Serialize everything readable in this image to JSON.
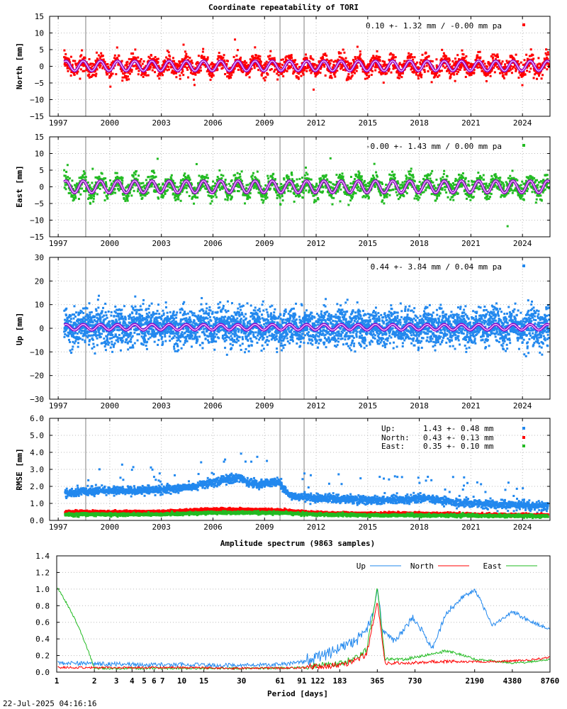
{
  "title": "Coordinate repeatability of TORI",
  "timestamp": "22-Jul-2025 04:16:16",
  "colors": {
    "north": "#ff0000",
    "east": "#22bb22",
    "up": "#2288ee",
    "model": "#9900cc",
    "discontinuity": "#aaaaaa",
    "grid": "#bbbbbb"
  },
  "chart_data": [
    {
      "type": "scatter",
      "ylabel": "North [mm]",
      "legend": "0.10 +- 1.32 mm / -0.00 mm pa",
      "legend_position": "top-right",
      "ylim": [
        -15,
        15
      ],
      "yticks": [
        -15,
        -10,
        -5,
        0,
        5,
        10,
        15
      ],
      "xlim": [
        1996.5,
        2025.6
      ],
      "xticks": [
        1997,
        2000,
        2003,
        2006,
        2009,
        2012,
        2015,
        2018,
        2021,
        2024
      ],
      "data_start": 1997.35,
      "data_end": 2025.55,
      "mean": 0.1,
      "wrms": 1.32,
      "rate": -0.0,
      "seasonal_amplitude": 1.5,
      "discontinuities": [
        1998.6,
        2009.9,
        2011.3
      ],
      "grid": true
    },
    {
      "type": "scatter",
      "ylabel": "East [mm]",
      "legend": "-0.00 +- 1.43 mm /  0.00 mm pa",
      "legend_position": "top-right",
      "ylim": [
        -15,
        15
      ],
      "yticks": [
        -15,
        -10,
        -5,
        0,
        5,
        10,
        15
      ],
      "xlim": [
        1996.5,
        2025.6
      ],
      "xticks": [
        1997,
        2000,
        2003,
        2006,
        2009,
        2012,
        2015,
        2018,
        2021,
        2024
      ],
      "data_start": 1997.35,
      "data_end": 2025.55,
      "mean": -0.0,
      "wrms": 1.43,
      "rate": 0.0,
      "seasonal_amplitude": 1.8,
      "discontinuities": [
        1998.6,
        2009.9,
        2011.3
      ],
      "grid": true
    },
    {
      "type": "scatter",
      "ylabel": "Up [mm]",
      "legend": "0.44 +- 3.84 mm /  0.04 mm pa",
      "legend_position": "top-right",
      "ylim": [
        -30,
        30
      ],
      "yticks": [
        -30,
        -20,
        -10,
        0,
        10,
        20,
        30
      ],
      "xlim": [
        1996.5,
        2025.6
      ],
      "xticks": [
        1997,
        2000,
        2003,
        2006,
        2009,
        2012,
        2015,
        2018,
        2021,
        2024
      ],
      "data_start": 1997.35,
      "data_end": 2025.55,
      "mean": 0.44,
      "wrms": 3.84,
      "rate": 0.04,
      "seasonal_amplitude": 1.2,
      "discontinuities": [
        1998.6,
        2009.9,
        2011.3
      ],
      "grid": true
    },
    {
      "type": "scatter",
      "ylabel": "RMSE [mm]",
      "ylim": [
        0.0,
        6.0
      ],
      "yticks": [
        "0.0",
        "1.0",
        "2.0",
        "3.0",
        "4.0",
        "5.0",
        "6.0"
      ],
      "xlim": [
        1996.5,
        2025.6
      ],
      "xticks": [
        1997,
        2000,
        2003,
        2006,
        2009,
        2012,
        2015,
        2018,
        2021,
        2024
      ],
      "legend_position": "top-right",
      "legend": [
        {
          "label": "Up:",
          "value": "1.43 +- 0.48 mm",
          "series": "up"
        },
        {
          "label": "North:",
          "value": "0.43 +- 0.13 mm",
          "series": "north"
        },
        {
          "label": "East:",
          "value": "0.35 +- 0.10 mm",
          "series": "east"
        }
      ],
      "series": [
        {
          "name": "Up",
          "x": [
            1997.4,
            1999,
            2001,
            2003,
            2005,
            2006.5,
            2007.5,
            2008.5,
            2009.8,
            2010.5,
            2012,
            2014,
            2015.5,
            2017,
            2018.5,
            2020,
            2022,
            2024,
            2025.5
          ],
          "values": [
            1.6,
            1.75,
            1.75,
            1.8,
            2.0,
            2.35,
            2.5,
            2.1,
            2.3,
            1.4,
            1.3,
            1.25,
            1.2,
            1.2,
            1.3,
            1.05,
            0.95,
            0.9,
            0.85
          ]
        },
        {
          "name": "North",
          "x": [
            1997.4,
            2000,
            2003,
            2006,
            2009.8,
            2012,
            2015,
            2018,
            2021,
            2025.5
          ],
          "values": [
            0.5,
            0.5,
            0.5,
            0.65,
            0.6,
            0.45,
            0.4,
            0.4,
            0.35,
            0.3
          ]
        },
        {
          "name": "East",
          "x": [
            1997.4,
            2000,
            2003,
            2006,
            2009.8,
            2012,
            2015,
            2018,
            2021,
            2025.5
          ],
          "values": [
            0.35,
            0.35,
            0.35,
            0.45,
            0.45,
            0.35,
            0.3,
            0.3,
            0.28,
            0.25
          ]
        }
      ],
      "discontinuities": [
        1998.6,
        2009.9,
        2011.3
      ],
      "grid": true
    },
    {
      "type": "line",
      "title": "Amplitude spectrum (9863 samples)",
      "xlabel": "Period [days]",
      "ylim": [
        0.0,
        1.4
      ],
      "yticks": [
        "0.0",
        "0.2",
        "0.4",
        "0.6",
        "0.8",
        "1.0",
        "1.2",
        "1.4"
      ],
      "xscale": "log",
      "xlim": [
        1,
        8760
      ],
      "xticks": [
        1,
        2,
        3,
        4,
        5,
        6,
        7,
        10,
        15,
        30,
        61,
        91,
        122,
        183,
        365,
        730,
        2190,
        4380,
        8760
      ],
      "legend_position": "top-right",
      "series": [
        {
          "name": "Up",
          "x": [
            1,
            2,
            5,
            10,
            30,
            60,
            100,
            150,
            183,
            250,
            330,
            365,
            400,
            500,
            700,
            1000,
            1300,
            1700,
            2190,
            3000,
            4380,
            6000,
            8760
          ],
          "values": [
            0.1,
            0.09,
            0.08,
            0.08,
            0.07,
            0.08,
            0.12,
            0.2,
            0.25,
            0.35,
            0.6,
            1.0,
            0.5,
            0.35,
            0.65,
            0.27,
            0.7,
            0.88,
            0.98,
            0.55,
            0.72,
            0.6,
            0.5
          ]
        },
        {
          "name": "North",
          "x": [
            1,
            2,
            10,
            30,
            100,
            200,
            300,
            365,
            420,
            600,
            1000,
            2190,
            4380,
            8760
          ],
          "values": [
            0.05,
            0.05,
            0.05,
            0.04,
            0.05,
            0.08,
            0.2,
            0.85,
            0.1,
            0.1,
            0.12,
            0.12,
            0.13,
            0.17
          ]
        },
        {
          "name": "East",
          "x": [
            1,
            2,
            10,
            30,
            100,
            200,
            300,
            365,
            420,
            600,
            900,
            1300,
            2190,
            4380,
            8760
          ],
          "values": [
            1.02,
            0.04,
            0.04,
            0.04,
            0.05,
            0.1,
            0.25,
            1.02,
            0.15,
            0.15,
            0.2,
            0.25,
            0.15,
            0.1,
            0.15
          ]
        }
      ],
      "grid": true
    }
  ]
}
